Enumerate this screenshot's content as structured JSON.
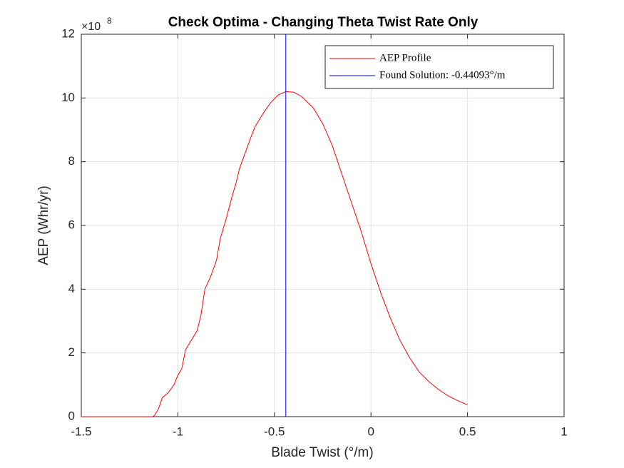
{
  "chart_data": {
    "type": "line",
    "title": "Check Optima - Changing Theta Twist Rate Only",
    "x_label": "Blade Twist (°/m)",
    "y_label": "AEP (Whr/yr)",
    "y_multiplier": "×10",
    "y_multiplier_exponent": "8",
    "x": [
      -1.5,
      -1.13,
      -1.12,
      -1.1,
      -1.08,
      -1.05,
      -1.02,
      -1.0,
      -0.98,
      -0.96,
      -0.93,
      -0.9,
      -0.88,
      -0.86,
      -0.83,
      -0.8,
      -0.78,
      -0.75,
      -0.72,
      -0.7,
      -0.68,
      -0.65,
      -0.62,
      -0.6,
      -0.56,
      -0.52,
      -0.48,
      -0.44,
      -0.4,
      -0.36,
      -0.3,
      -0.25,
      -0.2,
      -0.15,
      -0.1,
      -0.05,
      0,
      0.05,
      0.1,
      0.15,
      0.2,
      0.25,
      0.3,
      0.35,
      0.4,
      0.45,
      0.5
    ],
    "series": [
      {
        "name": "AEP Profile",
        "color": "#ff0000",
        "values": [
          0,
          0,
          0.05,
          0.25,
          0.6,
          0.75,
          1.0,
          1.3,
          1.5,
          2.1,
          2.4,
          2.7,
          3.2,
          4.0,
          4.4,
          4.9,
          5.6,
          6.2,
          6.9,
          7.3,
          7.8,
          8.3,
          8.8,
          9.1,
          9.5,
          9.85,
          10.1,
          10.2,
          10.18,
          10.05,
          9.7,
          9.2,
          8.5,
          7.6,
          6.7,
          5.8,
          4.8,
          3.9,
          3.1,
          2.4,
          1.85,
          1.4,
          1.1,
          0.85,
          0.65,
          0.5,
          0.37
        ]
      }
    ],
    "solution": {
      "name": "Found Solution: -0.44093°/m",
      "x": -0.44093,
      "color": "#0000ff"
    },
    "xlim": [
      -1.5,
      1
    ],
    "xticks": [
      -1.5,
      -1,
      -0.5,
      0,
      0.5,
      1
    ],
    "ylim": [
      0,
      12
    ],
    "yticks": [
      0,
      2,
      4,
      6,
      8,
      10,
      12
    ],
    "grid": true,
    "legend": "top-right"
  }
}
